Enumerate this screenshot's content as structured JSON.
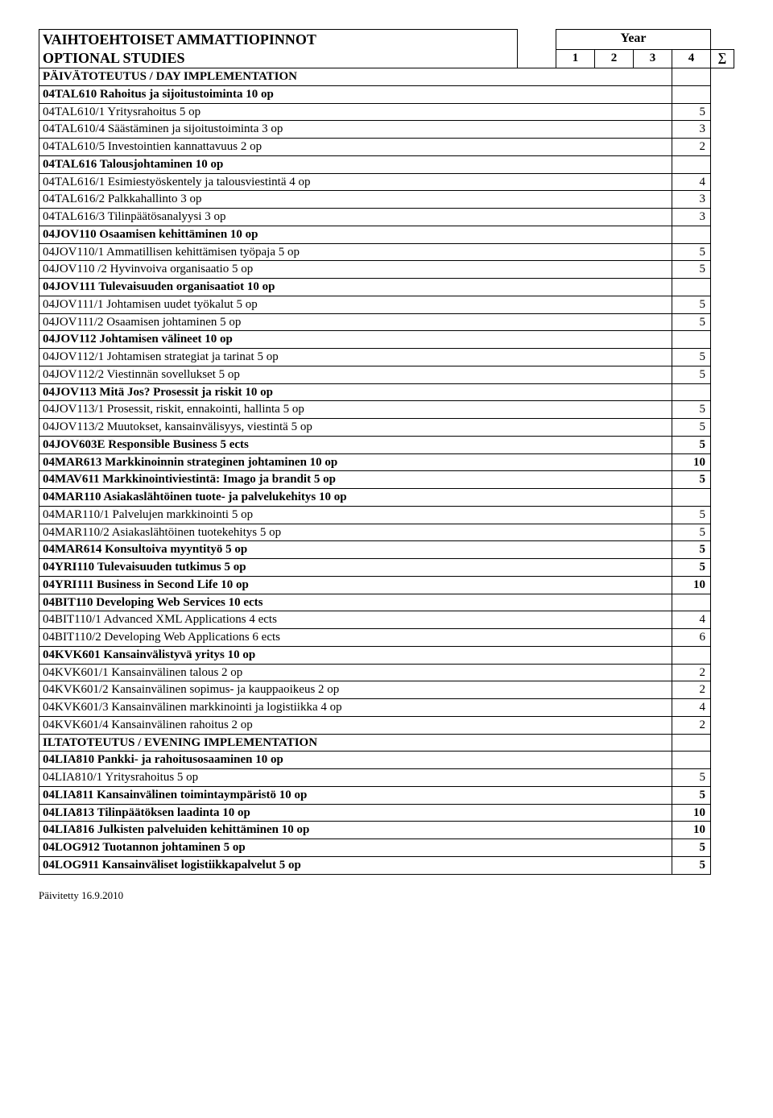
{
  "header": {
    "title_line1": "VAIHTOEHTOISET AMMATTIOPINNOT",
    "title_line2": "OPTIONAL STUDIES",
    "year_label": "Year",
    "year_cols": [
      "1",
      "2",
      "3",
      "4"
    ],
    "sum_col": "∑"
  },
  "rows": [
    {
      "bold": true,
      "text": "PÄIVÄTOTEUTUS / DAY IMPLEMENTATION",
      "credit": ""
    },
    {
      "bold": true,
      "text": "04TAL610 Rahoitus ja sijoitustoiminta 10 op",
      "credit": "",
      "noTop": true
    },
    {
      "bold": false,
      "text": "04TAL610/1 Yritysrahoitus 5  op",
      "credit": "5",
      "noTop": true
    },
    {
      "bold": false,
      "text": "04TAL610/4 Säästäminen ja sijoitustoiminta 3 op",
      "credit": "3",
      "noTop": true
    },
    {
      "bold": false,
      "text": "04TAL610/5 Investointien kannattavuus 2 op",
      "credit": "2",
      "noTop": true
    },
    {
      "bold": true,
      "text": "04TAL616 Talousjohtaminen 10 op",
      "credit": ""
    },
    {
      "bold": false,
      "text": "04TAL616/1 Esimiestyöskentely ja talousviestintä 4 op",
      "credit": "4",
      "noTop": true
    },
    {
      "bold": false,
      "text": "04TAL616/2 Palkkahallinto 3 op",
      "credit": "3",
      "noTop": true
    },
    {
      "bold": false,
      "text": "04TAL616/3 Tilinpäätösanalyysi 3 op",
      "credit": "3",
      "noTop": true
    },
    {
      "bold": true,
      "text": "04JOV110 Osaamisen kehittäminen 10 op",
      "credit": ""
    },
    {
      "bold": false,
      "text": "04JOV110/1 Ammatillisen kehittämisen työpaja 5 op",
      "credit": "5",
      "noTop": true
    },
    {
      "bold": false,
      "text": "04JOV110 /2 Hyvinvoiva organisaatio 5 op",
      "credit": "5",
      "noTop": true
    },
    {
      "bold": true,
      "text": "04JOV111 Tulevaisuuden organisaatiot 10 op",
      "credit": ""
    },
    {
      "bold": false,
      "text": "04JOV111/1 Johtamisen uudet työkalut 5 op",
      "credit": "5",
      "noTop": true
    },
    {
      "bold": false,
      "text": "04JOV111/2 Osaamisen johtaminen 5 op",
      "credit": "5",
      "noTop": true
    },
    {
      "bold": true,
      "text": "04JOV112 Johtamisen välineet 10 op",
      "credit": ""
    },
    {
      "bold": false,
      "text": "04JOV112/1 Johtamisen strategiat ja tarinat 5 op",
      "credit": "5",
      "noTop": true
    },
    {
      "bold": false,
      "text": "04JOV112/2 Viestinnän sovellukset 5 op",
      "credit": "5",
      "noTop": true
    },
    {
      "bold": true,
      "text": "04JOV113 Mitä Jos? Prosessit ja riskit 10 op",
      "credit": ""
    },
    {
      "bold": false,
      "text": "04JOV113/1 Prosessit, riskit, ennakointi, hallinta 5 op",
      "credit": "5",
      "noTop": true
    },
    {
      "bold": false,
      "text": "04JOV113/2 Muutokset, kansainvälisyys, viestintä 5 op",
      "credit": "5",
      "noTop": true
    },
    {
      "bold": true,
      "text": "04JOV603E Responsible Business 5 ects",
      "credit": "5",
      "creditBold": true
    },
    {
      "bold": true,
      "text": "04MAR613 Markkinoinnin strateginen johtaminen 10 op",
      "credit": "10",
      "creditBold": true
    },
    {
      "bold": true,
      "text": "04MAV611 Markkinointiviestintä: Imago ja brandit 5 op",
      "credit": "5",
      "creditBold": true
    },
    {
      "bold": true,
      "text": "04MAR110 Asiakaslähtöinen tuote- ja palvelukehitys 10 op",
      "credit": ""
    },
    {
      "bold": false,
      "text": "04MAR110/1 Palvelujen markkinointi 5 op",
      "credit": "5",
      "noTop": true
    },
    {
      "bold": false,
      "text": "04MAR110/2 Asiakaslähtöinen tuotekehitys 5 op",
      "credit": "5",
      "noTop": true
    },
    {
      "bold": true,
      "text": "04MAR614 Konsultoiva myyntityö 5 op",
      "credit": "5",
      "creditBold": true
    },
    {
      "bold": true,
      "text": "04YRI110 Tulevaisuuden tutkimus 5 op",
      "credit": "5",
      "creditBold": true
    },
    {
      "bold": true,
      "text": "04YRI111 Business in Second Life 10 op",
      "credit": "10",
      "creditBold": true
    },
    {
      "bold": true,
      "text": "04BIT110 Developing Web Services 10 ects",
      "credit": ""
    },
    {
      "bold": false,
      "text": "04BIT110/1 Advanced XML Applications 4 ects",
      "credit": "4",
      "noTop": true
    },
    {
      "bold": false,
      "text": "04BIT110/2 Developing Web Applications 6 ects",
      "credit": "6",
      "noTop": true
    },
    {
      "bold": true,
      "text": "04KVK601 Kansainvälistyvä yritys 10 op",
      "credit": ""
    },
    {
      "bold": false,
      "text": "04KVK601/1 Kansainvälinen talous 2 op",
      "credit": "2",
      "noTop": true
    },
    {
      "bold": false,
      "text": "04KVK601/2 Kansainvälinen sopimus- ja kauppaoikeus 2 op",
      "credit": "2",
      "noTop": true
    },
    {
      "bold": false,
      "text": "04KVK601/3 Kansainvälinen markkinointi ja logistiikka 4 op",
      "credit": "4",
      "noTop": true
    },
    {
      "bold": false,
      "text": "04KVK601/4 Kansainvälinen rahoitus 2 op",
      "credit": "2",
      "noTop": true
    },
    {
      "bold": true,
      "text": "ILTATOTEUTUS / EVENING IMPLEMENTATION",
      "credit": ""
    },
    {
      "bold": true,
      "text": "04LIA810 Pankki- ja rahoitusosaaminen 10 op",
      "credit": "",
      "noTop": true
    },
    {
      "bold": false,
      "text": "04LIA810/1 Yritysrahoitus 5 op",
      "credit": "5",
      "noTop": true
    },
    {
      "bold": true,
      "text": "04LIA811 Kansainvälinen toimintaympäristö 10 op",
      "credit": "5",
      "creditBold": true
    },
    {
      "bold": true,
      "text": "04LIA813 Tilinpäätöksen laadinta 10 op",
      "credit": "10",
      "creditBold": true
    },
    {
      "bold": true,
      "text": "04LIA816 Julkisten palveluiden kehittäminen 10 op",
      "credit": "10",
      "creditBold": true
    },
    {
      "bold": true,
      "text": "04LOG912 Tuotannon johtaminen 5 op",
      "credit": "5",
      "creditBold": true
    },
    {
      "bold": true,
      "text": "04LOG911 Kansainväliset logistiikkapalvelut 5 op",
      "credit": "5",
      "creditBold": true
    }
  ],
  "footer": "Päivitetty 16.9.2010"
}
